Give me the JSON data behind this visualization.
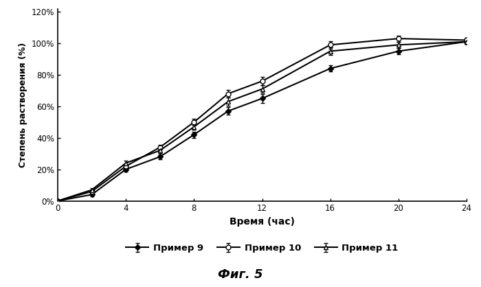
{
  "title": "Фиг. 5",
  "xlabel": "Время (час)",
  "ylabel": "Степень растворения (%)",
  "x_ticks": [
    0,
    4,
    8,
    12,
    16,
    20,
    24
  ],
  "ylim": [
    0,
    1.22
  ],
  "yticks": [
    0,
    0.2,
    0.4,
    0.6,
    0.8,
    1.0,
    1.2
  ],
  "series": [
    {
      "label": "Пример 9",
      "x": [
        0,
        2,
        4,
        6,
        8,
        10,
        12,
        16,
        20,
        24
      ],
      "y": [
        0,
        0.04,
        0.2,
        0.28,
        0.42,
        0.57,
        0.65,
        0.84,
        0.95,
        1.01
      ],
      "yerr": [
        0.005,
        0.01,
        0.015,
        0.015,
        0.02,
        0.025,
        0.03,
        0.02,
        0.02,
        0.015
      ],
      "color": "#000000",
      "marker": "D",
      "markersize": 4,
      "markerfacecolor": "#000000",
      "linestyle": "-",
      "linewidth": 1.5
    },
    {
      "label": "Пример 10",
      "x": [
        0,
        2,
        4,
        6,
        8,
        10,
        12,
        16,
        20,
        24
      ],
      "y": [
        0,
        0.06,
        0.22,
        0.34,
        0.5,
        0.68,
        0.76,
        0.99,
        1.03,
        1.02
      ],
      "yerr": [
        0.005,
        0.01,
        0.015,
        0.015,
        0.02,
        0.025,
        0.025,
        0.025,
        0.02,
        0.015
      ],
      "color": "#000000",
      "marker": "o",
      "markersize": 5,
      "markerfacecolor": "#ffffff",
      "linestyle": "-",
      "linewidth": 1.5
    },
    {
      "label": "Пример 11",
      "x": [
        0,
        2,
        4,
        6,
        8,
        10,
        12,
        16,
        20,
        24
      ],
      "y": [
        0,
        0.07,
        0.24,
        0.32,
        0.47,
        0.63,
        0.71,
        0.95,
        0.99,
        1.01
      ],
      "yerr": [
        0.005,
        0.01,
        0.015,
        0.015,
        0.02,
        0.025,
        0.025,
        0.025,
        0.02,
        0.015
      ],
      "color": "#000000",
      "marker": "^",
      "markersize": 5,
      "markerfacecolor": "#ffffff",
      "linestyle": "-",
      "linewidth": 1.5
    }
  ],
  "legend_ncol": 3,
  "background_color": "#ffffff"
}
